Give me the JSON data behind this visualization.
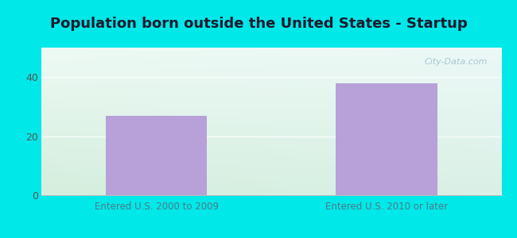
{
  "title": "Population born outside the United States - Startup",
  "categories": [
    "Entered U.S. 2000 to 2009",
    "Entered U.S. 2010 or later"
  ],
  "values": [
    27,
    38
  ],
  "bar_color": "#b8a0d8",
  "background_outer": "#00e8e8",
  "grad_top": "#edfaf4",
  "grad_bottom": "#d4eedd",
  "grad_right": "#e8f5fc",
  "ylim": [
    0,
    50
  ],
  "yticks": [
    0,
    20,
    40
  ],
  "title_fontsize": 13,
  "title_color": "#1a1a2e",
  "label_fontsize": 8.5,
  "tick_label_color": "#4d7a8a",
  "ytick_color": "#555555",
  "watermark": "City-Data.com",
  "bar_positions": [
    0.25,
    0.75
  ],
  "bar_width": 0.22
}
